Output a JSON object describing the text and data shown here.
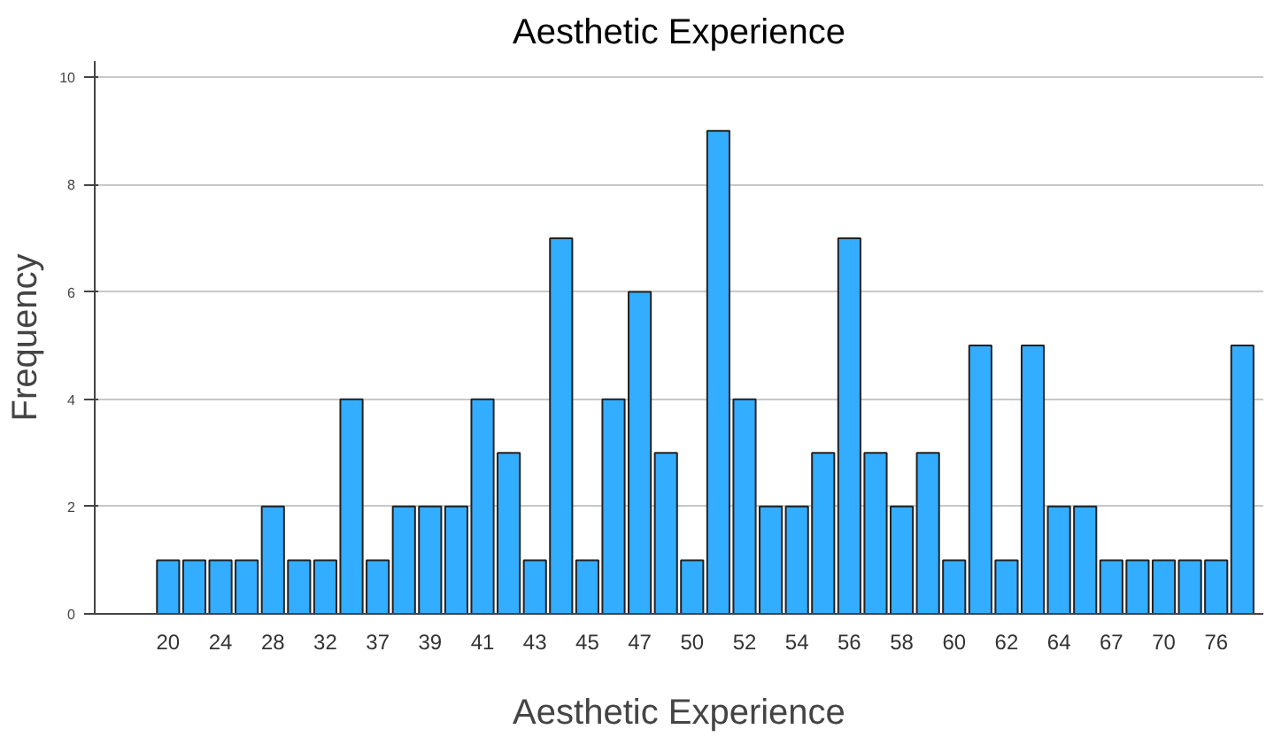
{
  "chart_data": {
    "type": "bar",
    "title": "Aesthetic Experience",
    "xlabel": "Aesthetic Experience",
    "ylabel": "Frequency",
    "categories": [
      "20",
      null,
      "24",
      null,
      "28",
      null,
      "32",
      null,
      "37",
      null,
      "39",
      null,
      "41",
      null,
      "43",
      null,
      "45",
      null,
      "47",
      null,
      "50",
      null,
      "52",
      null,
      "54",
      null,
      "56",
      null,
      "58",
      null,
      "60",
      null,
      "62",
      null,
      "64",
      null,
      "67",
      null,
      "70",
      null,
      "76",
      null
    ],
    "values": [
      1,
      1,
      1,
      1,
      2,
      1,
      1,
      4,
      1,
      2,
      2,
      2,
      4,
      3,
      1,
      7,
      1,
      4,
      6,
      3,
      1,
      9,
      4,
      2,
      2,
      3,
      7,
      3,
      2,
      3,
      1,
      5,
      1,
      5,
      2,
      2,
      1,
      1,
      1,
      1,
      1,
      5
    ],
    "color": "#33adff",
    "ylim": [
      0,
      10.3
    ],
    "yticks": [
      0,
      2,
      4,
      6,
      8,
      10
    ],
    "grid": "y"
  }
}
